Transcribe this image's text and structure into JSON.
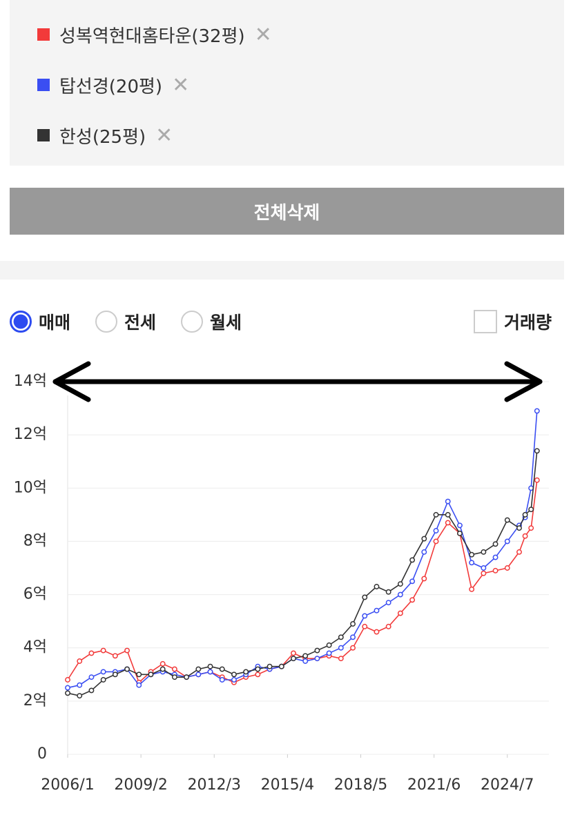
{
  "ui": {
    "clear_all": "전체삭제",
    "radio_options": [
      "매매",
      "전세",
      "월세"
    ],
    "volume_checkbox": "거래량"
  },
  "chart_data": {
    "type": "line",
    "x": [
      "2006/1",
      "2006/7",
      "2007/1",
      "2007/7",
      "2008/1",
      "2008/7",
      "2009/1",
      "2009/7",
      "2010/1",
      "2010/7",
      "2011/1",
      "2011/7",
      "2012/1",
      "2012/7",
      "2013/1",
      "2013/7",
      "2014/1",
      "2014/7",
      "2015/1",
      "2015/7",
      "2016/1",
      "2016/7",
      "2017/1",
      "2017/7",
      "2018/1",
      "2018/7",
      "2019/1",
      "2019/7",
      "2020/1",
      "2020/7",
      "2021/1",
      "2021/7",
      "2022/1",
      "2022/7",
      "2023/1",
      "2023/7",
      "2024/1",
      "2024/7",
      "2025/1",
      "2025/4",
      "2025/7",
      "2025/10"
    ],
    "series": [
      {
        "name": "성복역현대홈타운(32평)",
        "color": "#f23a3a",
        "values": [
          2.8,
          3.5,
          3.8,
          3.9,
          3.7,
          3.9,
          2.7,
          3.1,
          3.4,
          3.2,
          2.9,
          3.0,
          3.1,
          2.9,
          2.7,
          2.9,
          3.0,
          3.2,
          3.3,
          3.8,
          3.6,
          3.6,
          3.7,
          3.6,
          4.0,
          4.8,
          4.6,
          4.8,
          5.3,
          5.8,
          6.6,
          8.0,
          8.7,
          8.3,
          6.2,
          6.8,
          6.9,
          7.0,
          7.6,
          8.2,
          8.5,
          10.3
        ]
      },
      {
        "name": "탑선경(20평)",
        "color": "#3a4ef2",
        "values": [
          2.5,
          2.6,
          2.9,
          3.1,
          3.1,
          3.2,
          2.6,
          3.0,
          3.1,
          3.0,
          2.9,
          3.0,
          3.1,
          2.8,
          2.8,
          3.0,
          3.3,
          3.2,
          3.3,
          3.6,
          3.5,
          3.6,
          3.8,
          4.0,
          4.4,
          5.2,
          5.4,
          5.7,
          6.0,
          6.5,
          7.6,
          8.4,
          9.5,
          8.6,
          7.2,
          7.0,
          7.4,
          8.0,
          8.6,
          8.9,
          10.0,
          12.9
        ]
      },
      {
        "name": "한성(25평)",
        "color": "#333333",
        "values": [
          2.3,
          2.2,
          2.4,
          2.8,
          3.0,
          3.2,
          3.0,
          3.0,
          3.2,
          2.9,
          2.9,
          3.2,
          3.3,
          3.2,
          3.0,
          3.1,
          3.2,
          3.3,
          3.3,
          3.6,
          3.7,
          3.9,
          4.1,
          4.4,
          4.9,
          5.9,
          6.3,
          6.1,
          6.4,
          7.3,
          8.1,
          9.0,
          9.0,
          8.3,
          7.5,
          7.6,
          7.9,
          8.8,
          8.5,
          9.0,
          9.2,
          11.4
        ]
      }
    ],
    "xlim": [
      "2006/1",
      "2026/4"
    ],
    "xticks": [
      "2006/1",
      "2009/2",
      "2012/3",
      "2015/4",
      "2018/5",
      "2021/6",
      "2024/7"
    ],
    "ylim": [
      0,
      14
    ],
    "yticks": [
      0,
      {
        "value": 2,
        "label": "2억"
      },
      {
        "value": 4,
        "label": "4억"
      },
      {
        "value": 6,
        "label": "6억"
      },
      {
        "value": 8,
        "label": "8억"
      },
      {
        "value": 10,
        "label": "10억"
      },
      {
        "value": 12,
        "label": "12억"
      },
      {
        "value": 14,
        "label": "14억"
      }
    ],
    "grid": true
  }
}
